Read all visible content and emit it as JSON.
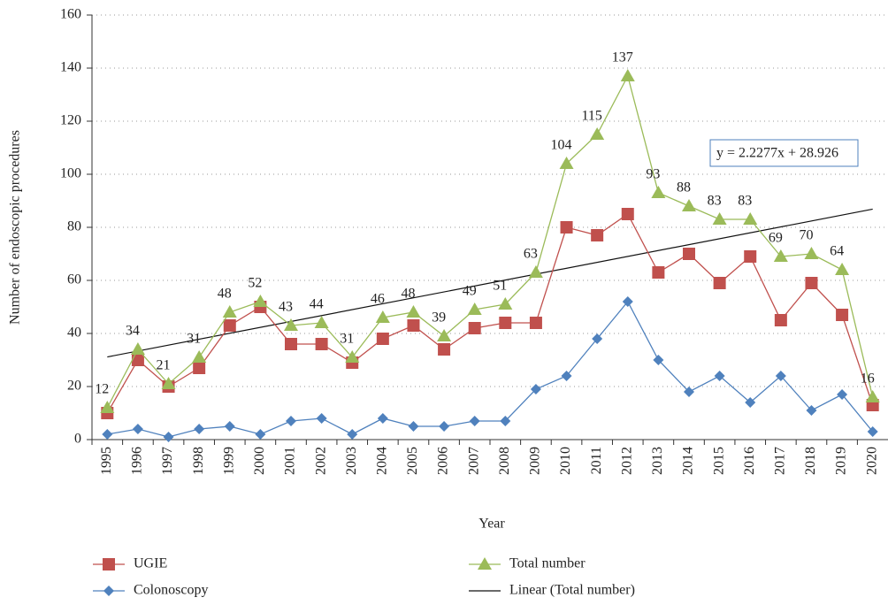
{
  "chart_data": {
    "type": "line",
    "x_label": "Year",
    "y_label": "Number of endoscopic procedures",
    "categories": [
      "1995",
      "1996",
      "1997",
      "1998",
      "1999",
      "2000",
      "2001",
      "2002",
      "2003",
      "2004",
      "2005",
      "2006",
      "2007",
      "2008",
      "2009",
      "2010",
      "2011",
      "2012",
      "2013",
      "2014",
      "2015",
      "2016",
      "2017",
      "2018",
      "2019",
      "2020"
    ],
    "series": [
      {
        "name": "UGIE",
        "color": "#c0504d",
        "marker": "square",
        "values": [
          10,
          30,
          20,
          27,
          43,
          50,
          36,
          36,
          29,
          38,
          43,
          34,
          42,
          44,
          44,
          80,
          77,
          85,
          63,
          70,
          59,
          69,
          45,
          59,
          47,
          13
        ]
      },
      {
        "name": "Colonoscopy",
        "color": "#4f81bd",
        "marker": "diamond",
        "values": [
          2,
          4,
          1,
          4,
          5,
          2,
          7,
          8,
          2,
          8,
          5,
          5,
          7,
          7,
          19,
          24,
          38,
          52,
          30,
          18,
          24,
          14,
          24,
          11,
          17,
          3
        ]
      },
      {
        "name": "Total number",
        "color": "#9bbb59",
        "marker": "triangle",
        "data_labels": true,
        "values": [
          12,
          34,
          21,
          31,
          48,
          52,
          43,
          44,
          31,
          46,
          48,
          39,
          49,
          51,
          63,
          104,
          115,
          137,
          93,
          88,
          83,
          83,
          69,
          70,
          64,
          16
        ]
      }
    ],
    "trendline": {
      "name": "Linear (Total number)",
      "color": "#111111",
      "equation": "y = 2.2277x + 28.926",
      "slope": 2.2277,
      "intercept": 28.926
    },
    "ylim": [
      0,
      160
    ],
    "yticks": [
      0,
      20,
      40,
      60,
      80,
      100,
      120,
      140,
      160
    ],
    "grid": true
  }
}
